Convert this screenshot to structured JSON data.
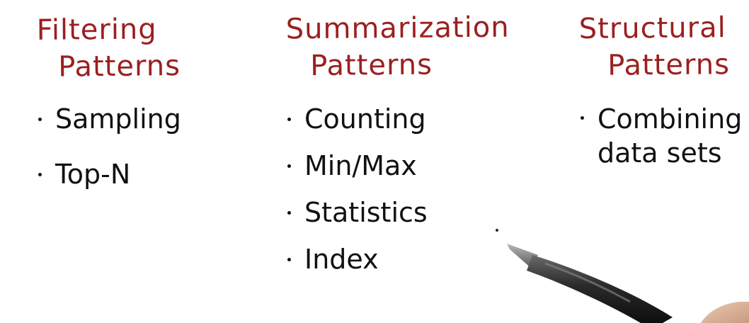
{
  "columns": {
    "filtering": {
      "heading_line1": "Filtering",
      "heading_line2": "Patterns",
      "items": [
        "Sampling",
        "Top-N"
      ]
    },
    "summarization": {
      "heading_line1": "Summarization",
      "heading_line2": "Patterns",
      "items": [
        "Counting",
        "Min/Max",
        "Statistics",
        "Index"
      ]
    },
    "structural": {
      "heading_line1": "Structural",
      "heading_line2": "Patterns",
      "item_line1": "Combining",
      "item_line2": "data sets"
    }
  },
  "colors": {
    "heading": "#9b1f1f",
    "text": "#111111",
    "background": "#ffffff"
  },
  "icons": {
    "pen": "stylus-pen-icon"
  }
}
